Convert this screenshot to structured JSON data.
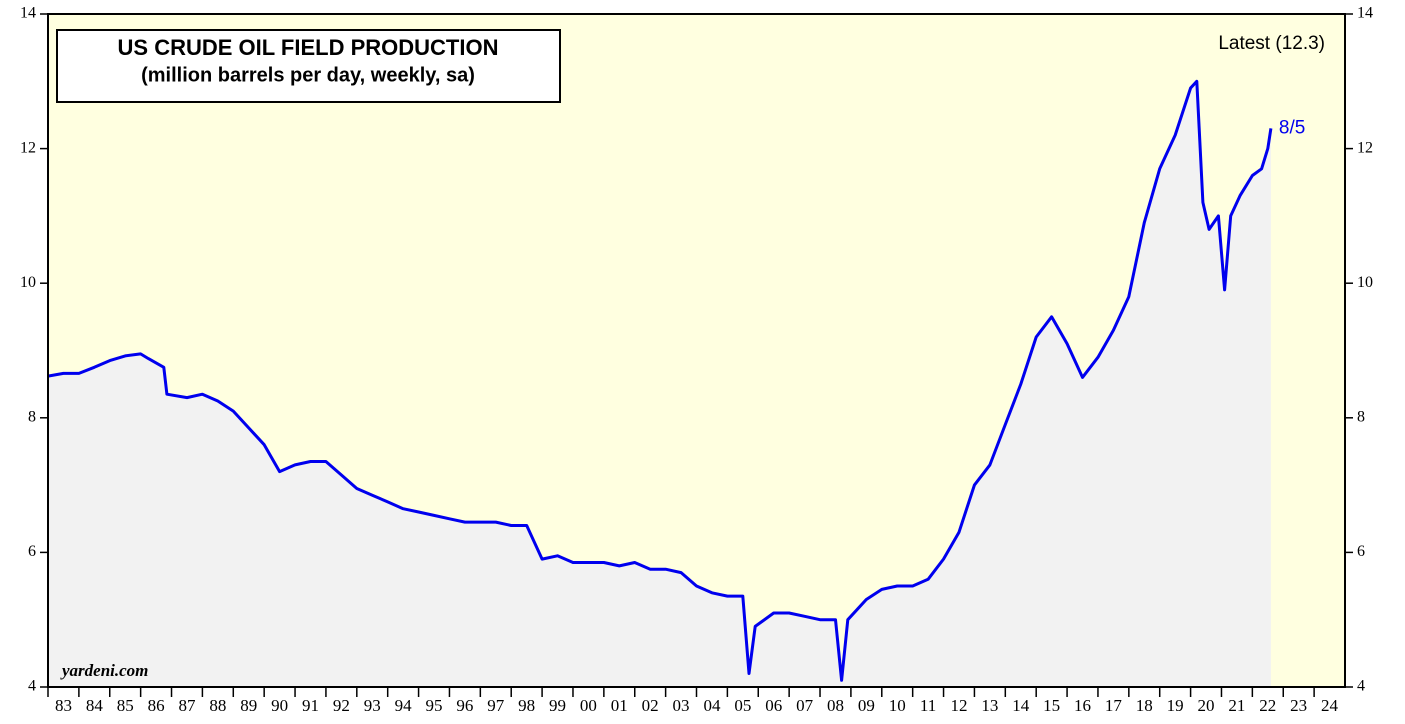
{
  "chart_data": {
    "type": "line",
    "title": "US CRUDE OIL FIELD PRODUCTION",
    "subtitle": "(million barrels per day, weekly, sa)",
    "annotations": {
      "latest": "Latest (12.3)",
      "date": "8/5",
      "source": "yardeni.com"
    },
    "series": [
      {
        "name": "US crude oil field production",
        "color": "#0000ee",
        "fill": "#f2f2f2",
        "x": [
          1983.0,
          1983.5,
          1984.0,
          1984.5,
          1985.0,
          1985.5,
          1986.0,
          1986.25,
          1986.75,
          1986.85,
          1987.5,
          1988.0,
          1988.5,
          1989.0,
          1989.5,
          1990.0,
          1990.5,
          1991.0,
          1991.5,
          1992.0,
          1992.5,
          1993.0,
          1993.5,
          1994.0,
          1994.5,
          1995.0,
          1995.5,
          1996.0,
          1996.5,
          1997.0,
          1997.5,
          1998.0,
          1998.5,
          1999.0,
          1999.5,
          2000.0,
          2000.5,
          2001.0,
          2001.5,
          2002.0,
          2002.5,
          2003.0,
          2003.5,
          2004.0,
          2004.5,
          2005.0,
          2005.5,
          2005.7,
          2005.9,
          2006.5,
          2007.0,
          2007.5,
          2008.0,
          2008.5,
          2008.7,
          2008.9,
          2009.5,
          2010.0,
          2010.5,
          2011.0,
          2011.5,
          2012.0,
          2012.5,
          2013.0,
          2013.5,
          2014.0,
          2014.5,
          2015.0,
          2015.5,
          2016.0,
          2016.5,
          2017.0,
          2017.5,
          2018.0,
          2018.5,
          2019.0,
          2019.5,
          2020.0,
          2020.2,
          2020.4,
          2020.6,
          2020.9,
          2021.1,
          2021.3,
          2021.6,
          2022.0,
          2022.3,
          2022.5,
          2022.6
        ],
        "values": [
          8.62,
          8.66,
          8.66,
          8.75,
          8.85,
          8.92,
          8.95,
          8.88,
          8.75,
          8.35,
          8.3,
          8.35,
          8.25,
          8.1,
          7.85,
          7.6,
          7.2,
          7.3,
          7.35,
          7.35,
          7.15,
          6.95,
          6.85,
          6.75,
          6.65,
          6.6,
          6.55,
          6.5,
          6.45,
          6.45,
          6.45,
          6.4,
          6.4,
          5.9,
          5.95,
          5.85,
          5.85,
          5.85,
          5.8,
          5.85,
          5.75,
          5.75,
          5.7,
          5.5,
          5.4,
          5.35,
          5.35,
          4.2,
          4.9,
          5.1,
          5.1,
          5.05,
          5.0,
          5.0,
          4.1,
          5.0,
          5.3,
          5.45,
          5.5,
          5.5,
          5.6,
          5.9,
          6.3,
          7.0,
          7.3,
          7.9,
          8.5,
          9.2,
          9.5,
          9.1,
          8.6,
          8.9,
          9.3,
          9.8,
          10.9,
          11.7,
          12.2,
          12.9,
          13.0,
          11.2,
          10.8,
          11.0,
          9.9,
          11.0,
          11.3,
          11.6,
          11.7,
          12.0,
          12.3
        ]
      }
    ],
    "xlim": [
      1983,
      2025
    ],
    "xticks": [
      {
        "value": 1983,
        "label": "83"
      },
      {
        "value": 1984,
        "label": "84"
      },
      {
        "value": 1985,
        "label": "85"
      },
      {
        "value": 1986,
        "label": "86"
      },
      {
        "value": 1987,
        "label": "87"
      },
      {
        "value": 1988,
        "label": "88"
      },
      {
        "value": 1989,
        "label": "89"
      },
      {
        "value": 1990,
        "label": "90"
      },
      {
        "value": 1991,
        "label": "91"
      },
      {
        "value": 1992,
        "label": "92"
      },
      {
        "value": 1993,
        "label": "93"
      },
      {
        "value": 1994,
        "label": "94"
      },
      {
        "value": 1995,
        "label": "95"
      },
      {
        "value": 1996,
        "label": "96"
      },
      {
        "value": 1997,
        "label": "97"
      },
      {
        "value": 1998,
        "label": "98"
      },
      {
        "value": 1999,
        "label": "99"
      },
      {
        "value": 2000,
        "label": "00"
      },
      {
        "value": 2001,
        "label": "01"
      },
      {
        "value": 2002,
        "label": "02"
      },
      {
        "value": 2003,
        "label": "03"
      },
      {
        "value": 2004,
        "label": "04"
      },
      {
        "value": 2005,
        "label": "05"
      },
      {
        "value": 2006,
        "label": "06"
      },
      {
        "value": 2007,
        "label": "07"
      },
      {
        "value": 2008,
        "label": "08"
      },
      {
        "value": 2009,
        "label": "09"
      },
      {
        "value": 2010,
        "label": "10"
      },
      {
        "value": 2011,
        "label": "11"
      },
      {
        "value": 2012,
        "label": "12"
      },
      {
        "value": 2013,
        "label": "13"
      },
      {
        "value": 2014,
        "label": "14"
      },
      {
        "value": 2015,
        "label": "15"
      },
      {
        "value": 2016,
        "label": "16"
      },
      {
        "value": 2017,
        "label": "17"
      },
      {
        "value": 2018,
        "label": "18"
      },
      {
        "value": 2019,
        "label": "19"
      },
      {
        "value": 2020,
        "label": "20"
      },
      {
        "value": 2021,
        "label": "21"
      },
      {
        "value": 2022,
        "label": "22"
      },
      {
        "value": 2023,
        "label": "23"
      },
      {
        "value": 2024,
        "label": "24"
      }
    ],
    "ylim": [
      4,
      14
    ],
    "yticks": [
      4,
      6,
      8,
      10,
      12,
      14
    ],
    "background": "#ffffe0"
  }
}
